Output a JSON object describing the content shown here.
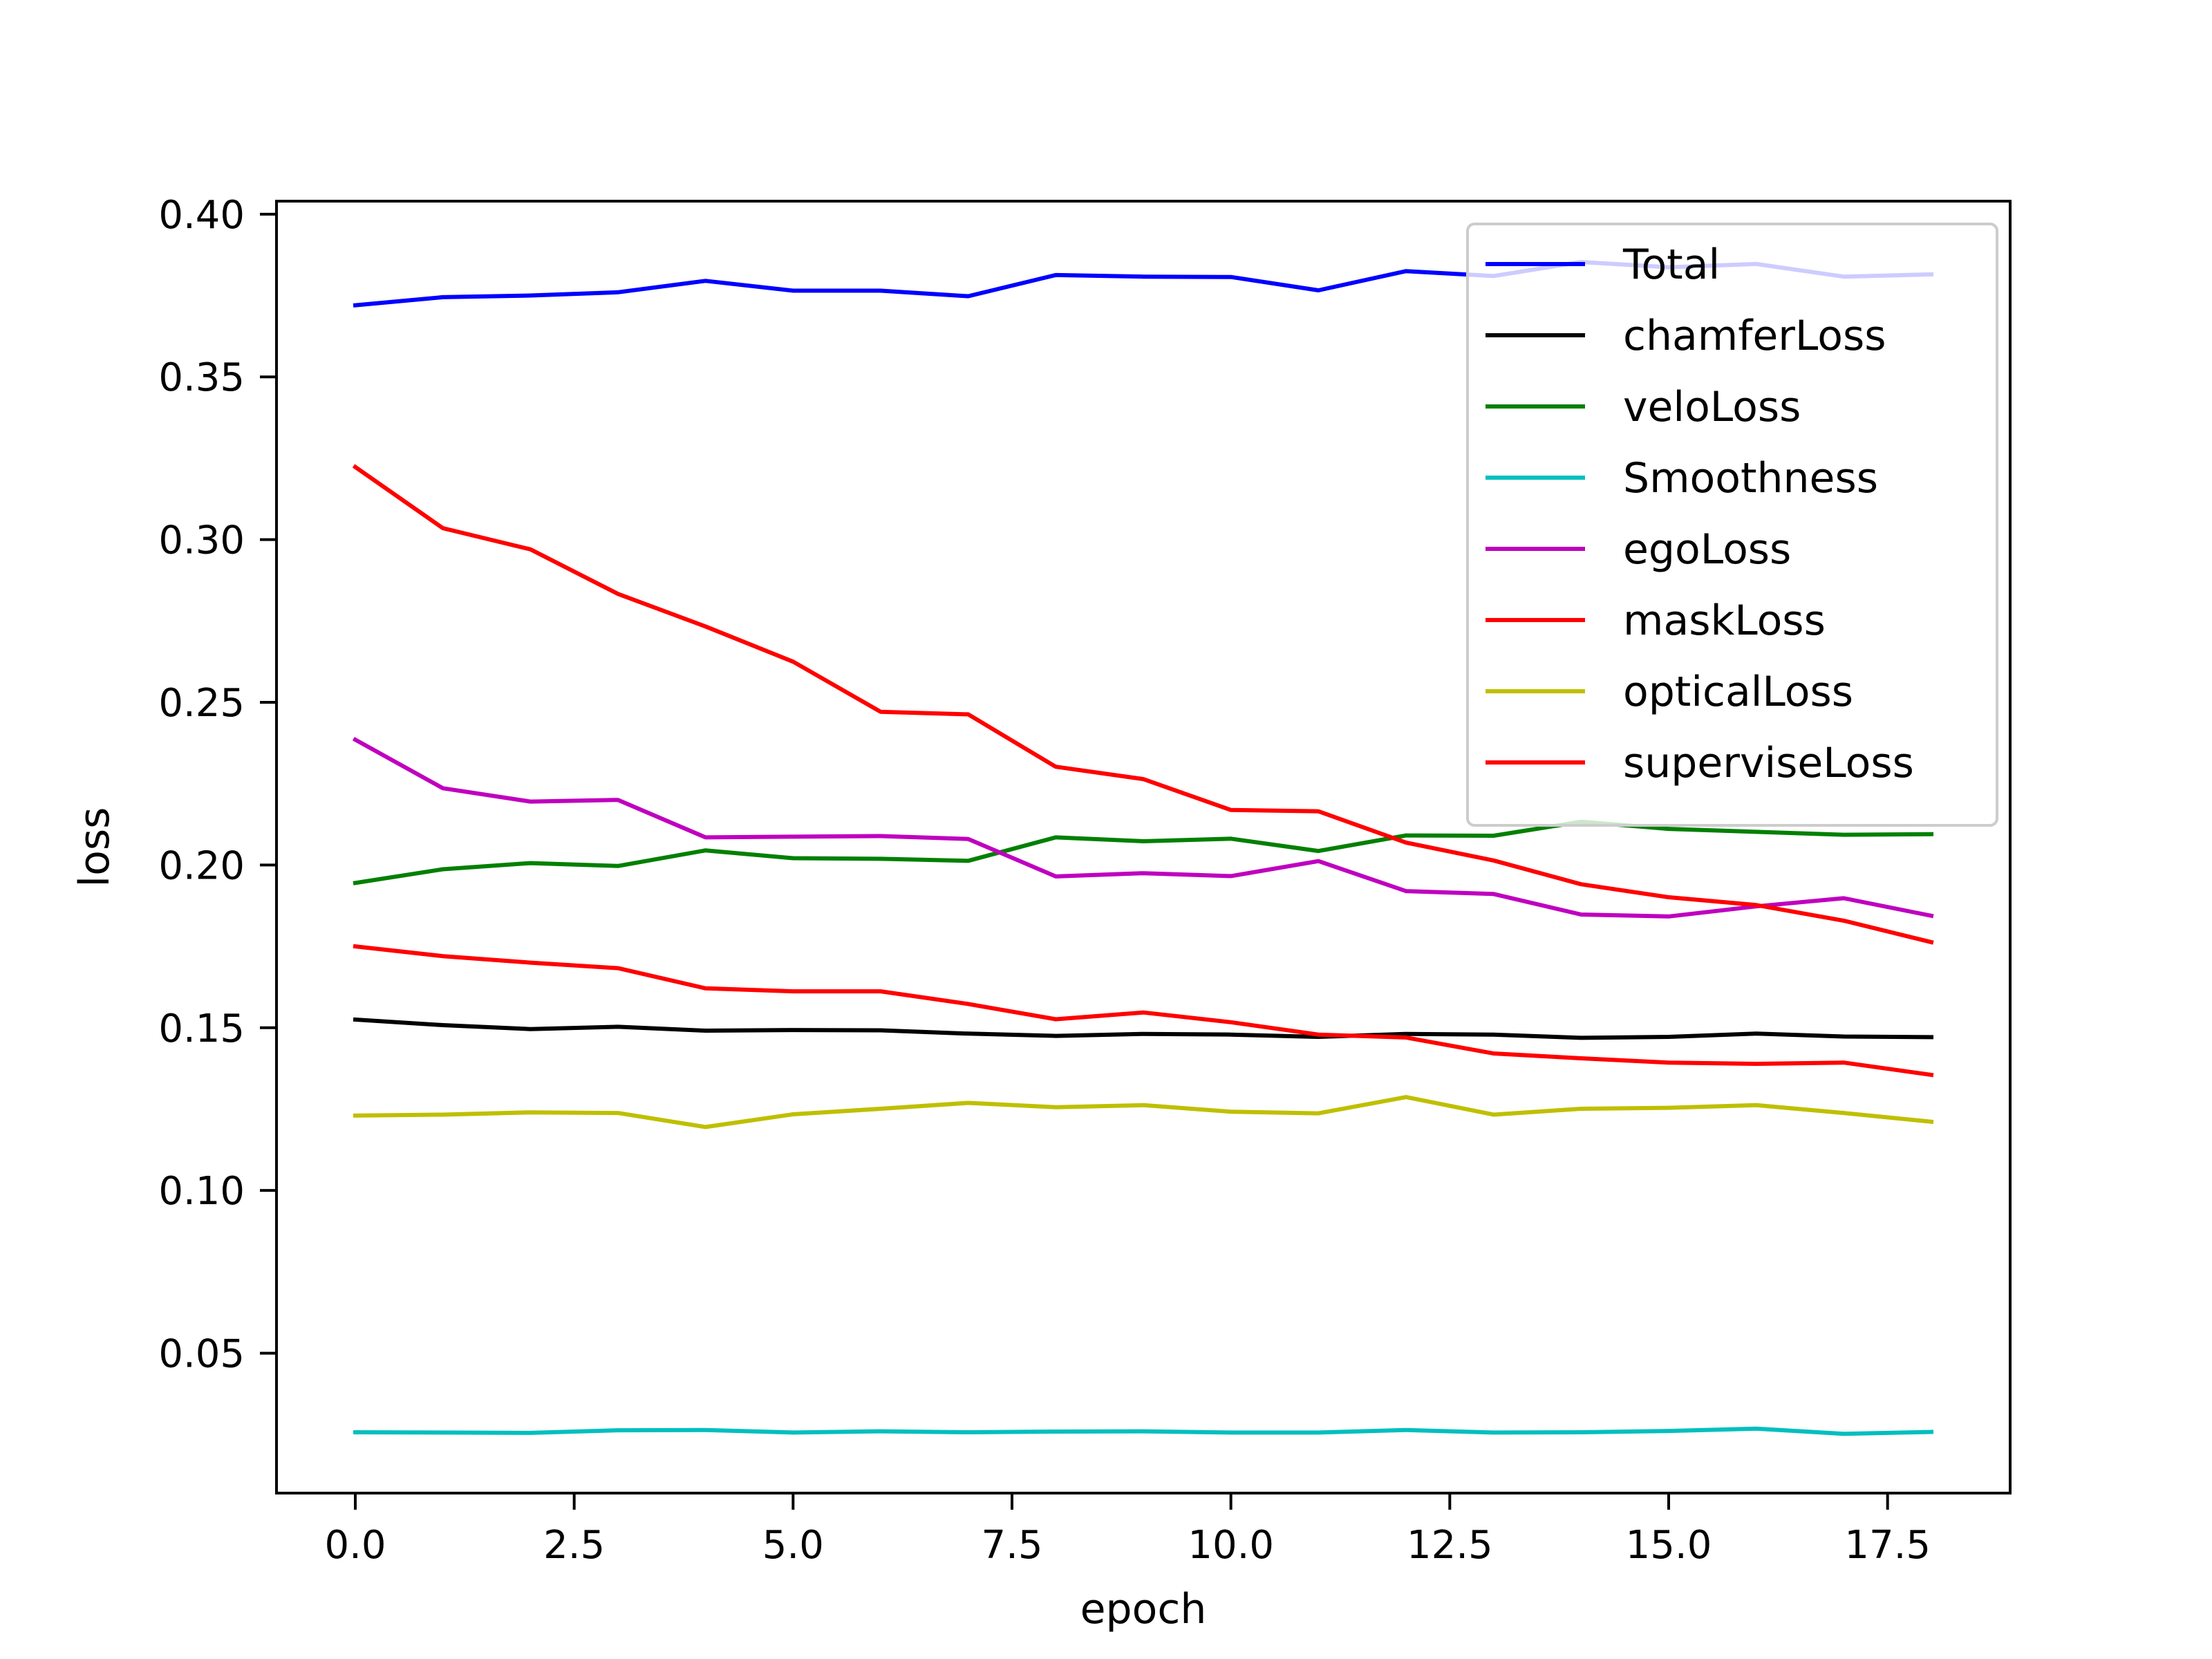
{
  "chart_data": {
    "type": "line",
    "title": "",
    "xlabel": "epoch",
    "ylabel": "loss",
    "xlim": [
      -0.9,
      18.9
    ],
    "ylim": [
      0.007,
      0.404
    ],
    "x_ticks": [
      0.0,
      2.5,
      5.0,
      7.5,
      10.0,
      12.5,
      15.0,
      17.5
    ],
    "x_tick_labels": [
      "0.0",
      "2.5",
      "5.0",
      "7.5",
      "10.0",
      "12.5",
      "15.0",
      "17.5"
    ],
    "y_ticks": [
      0.05,
      0.1,
      0.15,
      0.2,
      0.25,
      0.3,
      0.35,
      0.4
    ],
    "y_tick_labels": [
      "0.05",
      "0.10",
      "0.15",
      "0.20",
      "0.25",
      "0.30",
      "0.35",
      "0.40"
    ],
    "grid": false,
    "legend_position": "top-right",
    "x": [
      0,
      1,
      2,
      3,
      4,
      5,
      6,
      7,
      8,
      9,
      10,
      11,
      12,
      13,
      14,
      15,
      16,
      17,
      18
    ],
    "series": [
      {
        "name": "Total",
        "color": "#0000ff",
        "values": [
          0.372,
          0.3745,
          0.375,
          0.376,
          0.3795,
          0.3765,
          0.3765,
          0.3748,
          0.3813,
          0.3808,
          0.3807,
          0.3766,
          0.3825,
          0.381,
          0.3853,
          0.3837,
          0.3847,
          0.3808,
          0.3815
        ]
      },
      {
        "name": "chamferLoss",
        "color": "#000000",
        "values": [
          0.1525,
          0.1508,
          0.1496,
          0.1503,
          0.1491,
          0.1493,
          0.1492,
          0.1482,
          0.1475,
          0.1481,
          0.1479,
          0.1472,
          0.1481,
          0.1479,
          0.1469,
          0.1472,
          0.1482,
          0.1473,
          0.1471
        ]
      },
      {
        "name": "veloLoss",
        "color": "#008000",
        "values": [
          0.1945,
          0.1987,
          0.2006,
          0.1997,
          0.2045,
          0.2021,
          0.2019,
          0.2013,
          0.2085,
          0.2073,
          0.2081,
          0.2043,
          0.2091,
          0.209,
          0.2133,
          0.2111,
          0.2102,
          0.2093,
          0.2095
        ]
      },
      {
        "name": "Smoothness",
        "color": "#00bfbf",
        "values": [
          0.0257,
          0.0256,
          0.0255,
          0.0263,
          0.0264,
          0.0256,
          0.026,
          0.0257,
          0.0259,
          0.026,
          0.0256,
          0.0256,
          0.0264,
          0.0256,
          0.0257,
          0.0261,
          0.0268,
          0.0252,
          0.0258
        ]
      },
      {
        "name": "egoLoss",
        "color": "#bf00bf",
        "values": [
          0.2385,
          0.2236,
          0.2195,
          0.22,
          0.2085,
          0.2087,
          0.2089,
          0.208,
          0.1965,
          0.1975,
          0.1966,
          0.2012,
          0.192,
          0.1911,
          0.1848,
          0.1842,
          0.1873,
          0.1898,
          0.1844
        ]
      },
      {
        "name": "maskLoss",
        "color": "#ff0000",
        "values": [
          0.175,
          0.172,
          0.17,
          0.1683,
          0.1621,
          0.1612,
          0.1612,
          0.1573,
          0.1526,
          0.1547,
          0.1517,
          0.1479,
          0.147,
          0.1421,
          0.1406,
          0.1393,
          0.1389,
          0.1393,
          0.1355
        ]
      },
      {
        "name": "opticalLoss",
        "color": "#bfbf00",
        "values": [
          0.123,
          0.1233,
          0.124,
          0.1238,
          0.1195,
          0.1234,
          0.1251,
          0.1269,
          0.1256,
          0.1262,
          0.1242,
          0.1237,
          0.1287,
          0.1233,
          0.1251,
          0.1254,
          0.1262,
          0.1238,
          0.1211
        ]
      },
      {
        "name": "superviseLoss",
        "color": "#ff0000",
        "values": [
          0.3223,
          0.3035,
          0.297,
          0.2833,
          0.2733,
          0.2625,
          0.2471,
          0.2463,
          0.2302,
          0.2264,
          0.2169,
          0.2165,
          0.2069,
          0.2014,
          0.1941,
          0.1901,
          0.1877,
          0.1829,
          0.1763
        ]
      }
    ]
  }
}
